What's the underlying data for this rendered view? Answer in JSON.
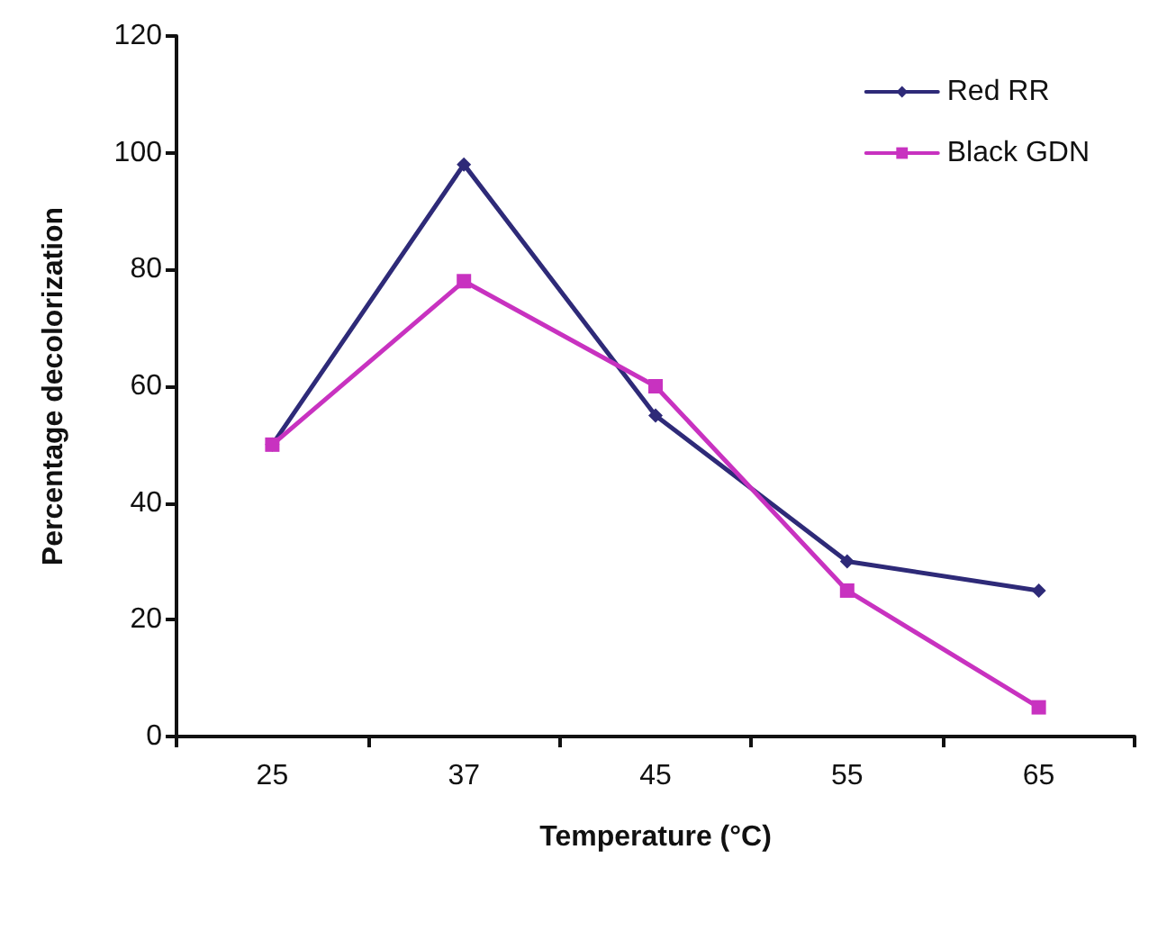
{
  "chart_data": {
    "type": "line",
    "xlabel": "Temperature (°C)",
    "ylabel": "Percentage decolorization",
    "categories": [
      "25",
      "37",
      "45",
      "55",
      "65"
    ],
    "series": [
      {
        "name": "Red RR",
        "color": "#2e2a78",
        "marker": "diamond",
        "values": [
          50,
          98,
          55,
          30,
          25
        ]
      },
      {
        "name": "Black GDN",
        "color": "#c832c0",
        "marker": "square",
        "values": [
          50,
          78,
          60,
          25,
          5
        ]
      }
    ],
    "ylim": [
      0,
      120
    ],
    "yticks": [
      0,
      20,
      40,
      60,
      80,
      100,
      120
    ],
    "grid": false,
    "legend": "top right",
    "line_style": "solid"
  }
}
